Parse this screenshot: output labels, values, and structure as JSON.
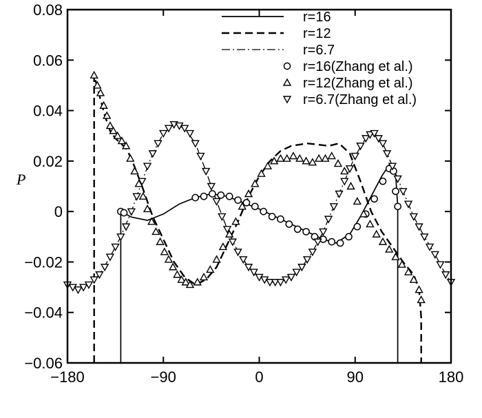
{
  "chart_data": {
    "type": "line",
    "title": "",
    "xlabel": "",
    "ylabel": "P",
    "xlim": [
      -180,
      180
    ],
    "ylim": [
      -0.06,
      0.08
    ],
    "xticks": [
      -180,
      -90,
      0,
      90,
      180
    ],
    "xtick_labels": [
      "−180",
      "−90",
      "0",
      "90",
      "180"
    ],
    "yticks": [
      -0.06,
      -0.04,
      -0.02,
      0,
      0.02,
      0.04,
      0.06,
      0.08
    ],
    "ytick_labels": [
      "−0.06",
      "−0.04",
      "−0.02",
      "0",
      "0.02",
      "0.04",
      "0.06",
      "0.08"
    ],
    "grid": false,
    "legend_position": "top-right",
    "series": [
      {
        "name": "r=16",
        "style": "solid",
        "points": [
          [
            -130,
            -0.06
          ],
          [
            -130,
            0.0
          ],
          [
            -120,
            -0.0022
          ],
          [
            -105,
            -0.0035
          ],
          [
            -90,
            -0.001
          ],
          [
            -75,
            0.003
          ],
          [
            -60,
            0.0055
          ],
          [
            -45,
            0.007
          ],
          [
            -30,
            0.006
          ],
          [
            -15,
            0.0035
          ],
          [
            0,
            0.001
          ],
          [
            15,
            -0.002
          ],
          [
            30,
            -0.005
          ],
          [
            45,
            -0.008
          ],
          [
            60,
            -0.011
          ],
          [
            72,
            -0.0125
          ],
          [
            85,
            -0.009
          ],
          [
            95,
            -0.002
          ],
          [
            105,
            0.006
          ],
          [
            115,
            0.014
          ],
          [
            122,
            0.0185
          ],
          [
            128,
            0.015
          ],
          [
            130,
            0.002
          ],
          [
            130,
            -0.06
          ]
        ]
      },
      {
        "name": "r=12",
        "style": "dashed",
        "points": [
          [
            -155,
            -0.06
          ],
          [
            -155,
            0.054
          ],
          [
            -150,
            0.046
          ],
          [
            -145,
            0.038
          ],
          [
            -140,
            0.032
          ],
          [
            -135,
            0.029
          ],
          [
            -130,
            0.027
          ],
          [
            -125,
            0.025
          ],
          [
            -120,
            0.021
          ],
          [
            -110,
            0.01
          ],
          [
            -100,
            -0.002
          ],
          [
            -90,
            -0.011
          ],
          [
            -80,
            -0.02
          ],
          [
            -70,
            -0.026
          ],
          [
            -60,
            -0.029
          ],
          [
            -50,
            -0.027
          ],
          [
            -40,
            -0.022
          ],
          [
            -30,
            -0.013
          ],
          [
            -20,
            -0.004
          ],
          [
            -10,
            0.006
          ],
          [
            0,
            0.014
          ],
          [
            10,
            0.02
          ],
          [
            20,
            0.024
          ],
          [
            30,
            0.026
          ],
          [
            45,
            0.027
          ],
          [
            55,
            0.0265
          ],
          [
            65,
            0.026
          ],
          [
            75,
            0.027
          ],
          [
            85,
            0.023
          ],
          [
            95,
            0.012
          ],
          [
            105,
            0.0
          ],
          [
            115,
            -0.008
          ],
          [
            125,
            -0.014
          ],
          [
            135,
            -0.02
          ],
          [
            145,
            -0.025
          ],
          [
            150,
            -0.031
          ],
          [
            152,
            -0.042
          ],
          [
            152,
            -0.06
          ]
        ]
      },
      {
        "name": "r=6.7",
        "style": "dashdot",
        "points": [
          [
            -180,
            -0.029
          ],
          [
            -170,
            -0.031
          ],
          [
            -160,
            -0.029
          ],
          [
            -150,
            -0.025
          ],
          [
            -140,
            -0.018
          ],
          [
            -130,
            -0.01
          ],
          [
            -120,
            0.0
          ],
          [
            -110,
            0.012
          ],
          [
            -100,
            0.023
          ],
          [
            -90,
            0.031
          ],
          [
            -80,
            0.0345
          ],
          [
            -70,
            0.033
          ],
          [
            -60,
            0.027
          ],
          [
            -50,
            0.016
          ],
          [
            -40,
            0.004
          ],
          [
            -30,
            -0.007
          ],
          [
            -20,
            -0.016
          ],
          [
            -10,
            -0.022
          ],
          [
            0,
            -0.026
          ],
          [
            10,
            -0.028
          ],
          [
            20,
            -0.028
          ],
          [
            30,
            -0.026
          ],
          [
            40,
            -0.022
          ],
          [
            50,
            -0.016
          ],
          [
            60,
            -0.008
          ],
          [
            70,
            0.002
          ],
          [
            80,
            0.012
          ],
          [
            90,
            0.022
          ],
          [
            100,
            0.029
          ],
          [
            108,
            0.031
          ],
          [
            115,
            0.028
          ],
          [
            125,
            0.018
          ],
          [
            135,
            0.008
          ],
          [
            145,
            -0.002
          ],
          [
            155,
            -0.01
          ],
          [
            165,
            -0.017
          ],
          [
            175,
            -0.025
          ],
          [
            180,
            -0.028
          ]
        ]
      },
      {
        "name": "r=16(Zhang et al.)",
        "marker": "circle",
        "points": [
          [
            -130,
            0.0
          ],
          [
            -127,
            -0.0005
          ],
          [
            -60,
            0.0055
          ],
          [
            -52,
            0.006
          ],
          [
            -44,
            0.007
          ],
          [
            -36,
            0.0065
          ],
          [
            -28,
            0.006
          ],
          [
            -20,
            0.0045
          ],
          [
            -12,
            0.0035
          ],
          [
            -4,
            0.002
          ],
          [
            4,
            0.0
          ],
          [
            12,
            -0.002
          ],
          [
            20,
            -0.003
          ],
          [
            28,
            -0.005
          ],
          [
            36,
            -0.007
          ],
          [
            44,
            -0.008
          ],
          [
            52,
            -0.01
          ],
          [
            60,
            -0.011
          ],
          [
            68,
            -0.012
          ],
          [
            76,
            -0.0125
          ],
          [
            84,
            -0.01
          ],
          [
            92,
            -0.006
          ],
          [
            100,
            -0.001
          ],
          [
            108,
            0.005
          ],
          [
            116,
            0.012
          ],
          [
            122,
            0.017
          ],
          [
            126,
            0.016
          ],
          [
            128,
            0.008
          ],
          [
            130,
            0.002
          ]
        ]
      },
      {
        "name": "r=12(Zhang et al.)",
        "marker": "triangle-up",
        "points": [
          [
            -155,
            0.054
          ],
          [
            -152,
            0.05
          ],
          [
            -149,
            0.047
          ],
          [
            -146,
            0.042
          ],
          [
            -143,
            0.038
          ],
          [
            -140,
            0.034
          ],
          [
            -137,
            0.032
          ],
          [
            -133,
            0.03
          ],
          [
            -129,
            0.028
          ],
          [
            -125,
            0.026
          ],
          [
            -121,
            0.021
          ],
          [
            -117,
            0.016
          ],
          [
            -113,
            0.011
          ],
          [
            -109,
            0.006
          ],
          [
            -105,
            0.001
          ],
          [
            -101,
            -0.004
          ],
          [
            -97,
            -0.008
          ],
          [
            -93,
            -0.012
          ],
          [
            -89,
            -0.016
          ],
          [
            -85,
            -0.019
          ],
          [
            -81,
            -0.022
          ],
          [
            -77,
            -0.025
          ],
          [
            -73,
            -0.027
          ],
          [
            -69,
            -0.028
          ],
          [
            -65,
            -0.029
          ],
          [
            -58,
            -0.028
          ],
          [
            -52,
            -0.026
          ],
          [
            -46,
            -0.023
          ],
          [
            -40,
            -0.019
          ],
          [
            -34,
            -0.014
          ],
          [
            -28,
            -0.009
          ],
          [
            -22,
            -0.004
          ],
          [
            -16,
            0.002
          ],
          [
            -10,
            0.007
          ],
          [
            -4,
            0.011
          ],
          [
            2,
            0.015
          ],
          [
            8,
            0.018
          ],
          [
            14,
            0.02
          ],
          [
            20,
            0.021
          ],
          [
            26,
            0.021
          ],
          [
            32,
            0.022
          ],
          [
            38,
            0.021
          ],
          [
            44,
            0.02
          ],
          [
            50,
            0.0195
          ],
          [
            56,
            0.021
          ],
          [
            62,
            0.021
          ],
          [
            68,
            0.022
          ],
          [
            74,
            0.019
          ],
          [
            80,
            0.016
          ],
          [
            86,
            0.01
          ],
          [
            92,
            0.004
          ],
          [
            98,
            -0.001
          ],
          [
            104,
            -0.005
          ],
          [
            110,
            -0.009
          ],
          [
            116,
            -0.012
          ],
          [
            122,
            -0.015
          ],
          [
            128,
            -0.018
          ],
          [
            134,
            -0.021
          ],
          [
            140,
            -0.024
          ],
          [
            145,
            -0.027
          ],
          [
            150,
            -0.031
          ],
          [
            152,
            -0.035
          ]
        ]
      },
      {
        "name": "r=6.7(Zhang et al.)",
        "marker": "triangle-down",
        "points": [
          [
            -180,
            -0.029
          ],
          [
            -175,
            -0.03
          ],
          [
            -170,
            -0.031
          ],
          [
            -165,
            -0.03
          ],
          [
            -160,
            -0.029
          ],
          [
            -155,
            -0.027
          ],
          [
            -150,
            -0.025
          ],
          [
            -145,
            -0.022
          ],
          [
            -140,
            -0.018
          ],
          [
            -135,
            -0.014
          ],
          [
            -130,
            -0.01
          ],
          [
            -125,
            -0.006
          ],
          [
            -120,
            0.0
          ],
          [
            -115,
            0.006
          ],
          [
            -110,
            0.012
          ],
          [
            -105,
            0.018
          ],
          [
            -100,
            0.023
          ],
          [
            -95,
            0.027
          ],
          [
            -90,
            0.031
          ],
          [
            -85,
            0.033
          ],
          [
            -80,
            0.0345
          ],
          [
            -75,
            0.034
          ],
          [
            -70,
            0.033
          ],
          [
            -65,
            0.031
          ],
          [
            -60,
            0.027
          ],
          [
            -55,
            0.022
          ],
          [
            -50,
            0.016
          ],
          [
            -45,
            0.01
          ],
          [
            -40,
            0.004
          ],
          [
            -35,
            -0.002
          ],
          [
            -30,
            -0.007
          ],
          [
            -25,
            -0.012
          ],
          [
            -20,
            -0.016
          ],
          [
            -15,
            -0.019
          ],
          [
            -10,
            -0.022
          ],
          [
            -5,
            -0.024
          ],
          [
            0,
            -0.026
          ],
          [
            5,
            -0.027
          ],
          [
            10,
            -0.028
          ],
          [
            15,
            -0.028
          ],
          [
            20,
            -0.028
          ],
          [
            25,
            -0.027
          ],
          [
            30,
            -0.026
          ],
          [
            35,
            -0.024
          ],
          [
            40,
            -0.022
          ],
          [
            45,
            -0.019
          ],
          [
            50,
            -0.016
          ],
          [
            55,
            -0.012
          ],
          [
            60,
            -0.008
          ],
          [
            65,
            -0.003
          ],
          [
            70,
            0.002
          ],
          [
            75,
            0.007
          ],
          [
            80,
            0.012
          ],
          [
            85,
            0.017
          ],
          [
            90,
            0.022
          ],
          [
            95,
            0.026
          ],
          [
            100,
            0.029
          ],
          [
            104,
            0.0305
          ],
          [
            108,
            0.031
          ],
          [
            112,
            0.029
          ],
          [
            116,
            0.027
          ],
          [
            120,
            0.023
          ],
          [
            125,
            0.018
          ],
          [
            130,
            0.013
          ],
          [
            135,
            0.008
          ],
          [
            140,
            0.003
          ],
          [
            145,
            -0.002
          ],
          [
            150,
            -0.006
          ],
          [
            155,
            -0.01
          ],
          [
            160,
            -0.014
          ],
          [
            165,
            -0.017
          ],
          [
            170,
            -0.021
          ],
          [
            175,
            -0.025
          ],
          [
            180,
            -0.028
          ]
        ]
      }
    ]
  }
}
